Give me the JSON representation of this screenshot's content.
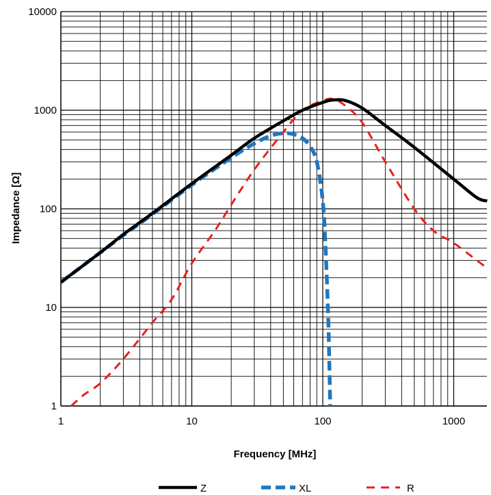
{
  "chart_data": {
    "type": "line",
    "xlabel": "Frequency [MHz]",
    "ylabel": "Impedance [Ω]",
    "xscale": "log",
    "yscale": "log",
    "xlim": [
      1,
      1800
    ],
    "ylim": [
      1,
      10000
    ],
    "x_ticks": [
      "1",
      "10",
      "100",
      "1000"
    ],
    "y_ticks": [
      "1",
      "10",
      "100",
      "1000",
      "10000"
    ],
    "grid": true,
    "legend_position": "bottom",
    "series": [
      {
        "name": "Z",
        "color": "#000000",
        "style": "solid",
        "x": [
          1,
          2,
          3,
          5,
          10,
          20,
          30,
          50,
          70,
          100,
          120,
          150,
          200,
          300,
          500,
          1000,
          1500,
          1800
        ],
        "y": [
          18,
          36,
          55,
          90,
          180,
          350,
          520,
          780,
          1000,
          1200,
          1270,
          1250,
          1050,
          700,
          420,
          200,
          130,
          120
        ]
      },
      {
        "name": "XL",
        "color": "#1f77c0",
        "style": "dashed",
        "x": [
          1,
          2,
          3,
          5,
          10,
          20,
          30,
          40,
          50,
          60,
          70,
          80,
          90,
          100,
          105,
          110,
          112,
          114
        ],
        "y": [
          18,
          36,
          54,
          88,
          175,
          330,
          460,
          550,
          585,
          570,
          520,
          430,
          300,
          120,
          40,
          8,
          3,
          1
        ]
      },
      {
        "name": "R",
        "color": "#e8201c",
        "style": "dashed",
        "x": [
          1.2,
          1.5,
          2,
          3,
          5,
          7,
          10,
          15,
          20,
          30,
          50,
          70,
          100,
          120,
          150,
          200,
          300,
          500,
          700,
          1000,
          1500,
          1800
        ],
        "y": [
          1,
          1.3,
          1.7,
          3,
          7,
          12,
          28,
          60,
          110,
          250,
          600,
          1000,
          1250,
          1300,
          1100,
          750,
          300,
          100,
          60,
          45,
          30,
          25
        ]
      }
    ]
  }
}
